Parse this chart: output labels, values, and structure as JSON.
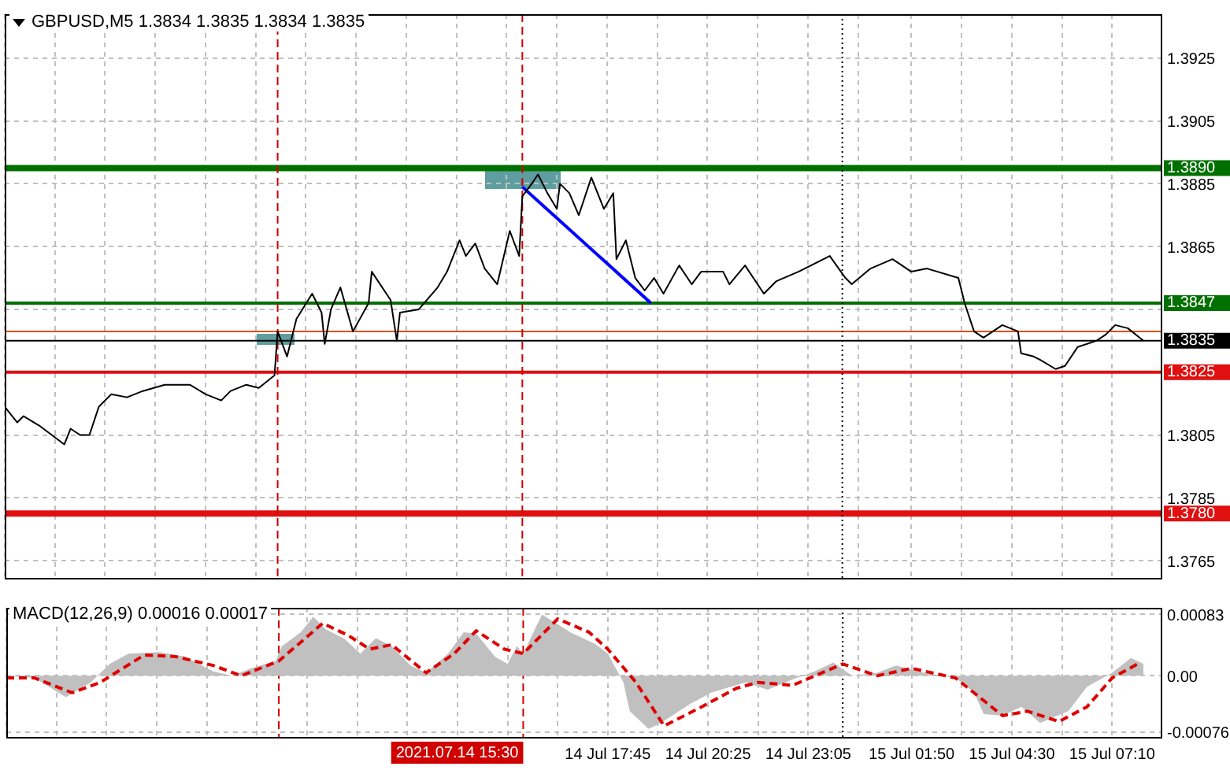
{
  "chart_data": [
    {
      "type": "line",
      "title": "GBPUSD,M5 1.3834 1.3835 1.3834 1.3835",
      "marker": "none",
      "grid": true,
      "tick_labels": "y",
      "xlim": [
        "2021-07-14T01:45",
        "2021-07-15T08:30"
      ],
      "xticks": [
        {
          "value": "2021-07-14T01:45",
          "label": null
        },
        {
          "value": "2021-07-14T03:05",
          "label": null
        },
        {
          "value": "2021-07-14T04:25",
          "label": null
        },
        {
          "value": "2021-07-14T05:45",
          "label": null
        },
        {
          "value": "2021-07-14T07:05",
          "label": null
        },
        {
          "value": "2021-07-14T08:25",
          "label": null
        },
        {
          "value": "2021-07-14T09:45",
          "label": null
        },
        {
          "value": "2021-07-14T11:05",
          "label": null
        },
        {
          "value": "2021-07-14T12:25",
          "label": null
        },
        {
          "value": "2021-07-14T13:45",
          "label": null
        },
        {
          "value": "2021-07-14T15:05",
          "label": null
        },
        {
          "value": "2021-07-14T16:25",
          "label": null
        },
        {
          "value": "2021-07-14T17:45",
          "label": null
        },
        {
          "value": "2021-07-14T19:05",
          "label": null
        },
        {
          "value": "2021-07-14T20:25",
          "label": null
        },
        {
          "value": "2021-07-14T21:45",
          "label": null
        },
        {
          "value": "2021-07-14T23:05",
          "label": null
        },
        {
          "value": "2021-07-15T00:25",
          "label": null
        },
        {
          "value": "2021-07-15T01:50",
          "label": null
        },
        {
          "value": "2021-07-15T03:10",
          "label": null
        },
        {
          "value": "2021-07-15T04:30",
          "label": null
        },
        {
          "value": "2021-07-15T05:50",
          "label": null
        },
        {
          "value": "2021-07-15T07:10",
          "label": null
        }
      ],
      "ylim": [
        1.3759,
        1.3939
      ],
      "yticks": [
        1.3765,
        1.3785,
        1.3805,
        {
          "value": 1.3845,
          "label": null
        },
        1.3865,
        1.3885,
        1.3905,
        1.3925
      ],
      "ref_lines": [
        {
          "axis": "y",
          "value": 1.389,
          "label": "1.3890",
          "color": "#007000"
        },
        {
          "axis": "y",
          "value": 1.3847,
          "label": "1.3847",
          "color": "#007000"
        },
        {
          "axis": "y",
          "value": 1.3838,
          "label": null,
          "color": "#e05000"
        },
        {
          "axis": "y",
          "value": 1.3835,
          "label": "1.3835",
          "color": "#000000"
        },
        {
          "axis": "y",
          "value": 1.3825,
          "label": "1.3825",
          "color": "#e01010"
        },
        {
          "axis": "y",
          "value": 1.378,
          "label": "1.3780",
          "color": "#e01010"
        },
        {
          "axis": "x",
          "value": "2021-07-14T09:00",
          "label": null,
          "color": "#d00000",
          "line_style": "dashed"
        },
        {
          "axis": "x",
          "value": "2021-07-14T15:30",
          "label": null,
          "color": "#d00000",
          "line_style": "dashed"
        },
        {
          "axis": "x",
          "value": "2021-07-15T00:00",
          "label": null,
          "color": "#000000",
          "line_style": "dotted"
        }
      ],
      "series": [
        {
          "color": "#000000",
          "x": [
            "2021-07-14T01:45",
            "2021-07-14T02:05",
            "2021-07-14T02:15",
            "2021-07-14T02:40",
            "2021-07-14T03:00",
            "2021-07-14T03:20",
            "2021-07-14T03:30",
            "2021-07-14T03:45",
            "2021-07-14T04:00",
            "2021-07-14T04:15",
            "2021-07-14T04:35",
            "2021-07-14T05:00",
            "2021-07-14T05:25",
            "2021-07-14T06:00",
            "2021-07-14T06:25",
            "2021-07-14T06:40",
            "2021-07-14T07:05",
            "2021-07-14T07:30",
            "2021-07-14T07:45",
            "2021-07-14T08:10",
            "2021-07-14T08:30",
            "2021-07-14T08:55",
            "2021-07-14T09:00",
            "2021-07-14T09:15",
            "2021-07-14T09:30",
            "2021-07-14T09:55",
            "2021-07-14T10:10",
            "2021-07-14T10:15",
            "2021-07-14T10:25",
            "2021-07-14T10:40",
            "2021-07-14T11:00",
            "2021-07-14T11:25",
            "2021-07-14T11:30",
            "2021-07-14T12:00",
            "2021-07-14T12:10",
            "2021-07-14T12:15",
            "2021-07-14T12:45",
            "2021-07-14T13:15",
            "2021-07-14T13:30",
            "2021-07-14T13:50",
            "2021-07-14T14:00",
            "2021-07-14T14:15",
            "2021-07-14T14:30",
            "2021-07-14T14:50",
            "2021-07-14T15:10",
            "2021-07-14T15:25",
            "2021-07-14T15:30",
            "2021-07-14T15:45",
            "2021-07-14T15:55",
            "2021-07-14T16:10",
            "2021-07-14T16:25",
            "2021-07-14T16:30",
            "2021-07-14T16:45",
            "2021-07-14T17:00",
            "2021-07-14T17:20",
            "2021-07-14T17:40",
            "2021-07-14T17:55",
            "2021-07-14T18:00",
            "2021-07-14T18:15",
            "2021-07-14T18:30",
            "2021-07-14T18:45",
            "2021-07-14T19:00",
            "2021-07-14T19:15",
            "2021-07-14T19:40",
            "2021-07-14T20:00",
            "2021-07-14T20:15",
            "2021-07-14T20:50",
            "2021-07-14T21:00",
            "2021-07-14T21:25",
            "2021-07-14T21:55",
            "2021-07-14T22:15",
            "2021-07-14T22:50",
            "2021-07-14T23:40",
            "2021-07-15T00:05",
            "2021-07-15T00:15",
            "2021-07-15T00:45",
            "2021-07-15T01:20",
            "2021-07-15T01:50",
            "2021-07-15T02:15",
            "2021-07-15T03:05",
            "2021-07-15T03:15",
            "2021-07-15T03:30",
            "2021-07-15T03:45",
            "2021-07-15T04:15",
            "2021-07-15T04:40",
            "2021-07-15T04:45",
            "2021-07-15T05:05",
            "2021-07-15T05:15",
            "2021-07-15T05:40",
            "2021-07-15T05:55",
            "2021-07-15T06:15",
            "2021-07-15T06:45",
            "2021-07-15T07:00",
            "2021-07-15T07:15",
            "2021-07-15T07:35",
            "2021-07-15T08:00"
          ],
          "values": [
            1.3814,
            1.3809,
            1.3811,
            1.3808,
            1.3805,
            1.3802,
            1.3807,
            1.3805,
            1.3805,
            1.3814,
            1.3818,
            1.3817,
            1.3819,
            1.3821,
            1.3821,
            1.3821,
            1.3818,
            1.3816,
            1.3819,
            1.3821,
            1.382,
            1.3824,
            1.3838,
            1.383,
            1.3842,
            1.385,
            1.3844,
            1.3834,
            1.3845,
            1.3852,
            1.3838,
            1.3847,
            1.3857,
            1.3848,
            1.3835,
            1.3844,
            1.3845,
            1.3852,
            1.3857,
            1.3867,
            1.3862,
            1.3866,
            1.3858,
            1.3853,
            1.387,
            1.3862,
            1.3881,
            1.3885,
            1.3888,
            1.3882,
            1.3877,
            1.3885,
            1.3882,
            1.3875,
            1.3887,
            1.3877,
            1.3882,
            1.3861,
            1.3867,
            1.3855,
            1.3851,
            1.3855,
            1.385,
            1.3859,
            1.3853,
            1.3857,
            1.3857,
            1.3853,
            1.3859,
            1.385,
            1.3854,
            1.3857,
            1.3862,
            1.3855,
            1.3853,
            1.3858,
            1.3861,
            1.3857,
            1.3858,
            1.3855,
            1.3847,
            1.3838,
            1.3836,
            1.384,
            1.3838,
            1.3831,
            1.383,
            1.3829,
            1.3826,
            1.3827,
            1.3833,
            1.3835,
            1.3837,
            1.384,
            1.3839,
            1.3835
          ]
        },
        {
          "color": "#0000ff",
          "x": [
            "2021-07-14T15:30",
            "2021-07-14T18:55"
          ],
          "values": [
            1.3884,
            1.3847
          ]
        }
      ]
    },
    {
      "type": "line",
      "title": "MACD(12,26,9) 0.00016 0.00017",
      "marker": "none",
      "grid": true,
      "xlim": [
        "2021-07-14T01:45",
        "2021-07-15T08:30"
      ],
      "xticks": [
        {
          "value": "2021-07-14T01:45",
          "label": null
        },
        {
          "value": "2021-07-14T03:05",
          "label": null
        },
        {
          "value": "2021-07-14T04:25",
          "label": null
        },
        {
          "value": "2021-07-14T05:45",
          "label": null
        },
        {
          "value": "2021-07-14T07:05",
          "label": null
        },
        {
          "value": "2021-07-14T08:25",
          "label": null
        },
        {
          "value": "2021-07-14T09:45",
          "label": null
        },
        {
          "value": "2021-07-14T11:05",
          "label": null
        },
        {
          "value": "2021-07-14T12:25",
          "label": null
        },
        {
          "value": "2021-07-14T13:45",
          "label": null
        },
        {
          "value": "2021-07-14T15:05",
          "label": null
        },
        {
          "value": "2021-07-14T16:25",
          "label": null
        },
        {
          "value": "2021-07-14T17:45",
          "label": "14 Jul 17:45"
        },
        {
          "value": "2021-07-14T19:05",
          "label": null
        },
        {
          "value": "2021-07-14T20:25",
          "label": "14 Jul 20:25"
        },
        {
          "value": "2021-07-14T21:45",
          "label": null
        },
        {
          "value": "2021-07-14T23:05",
          "label": "14 Jul 23:05"
        },
        {
          "value": "2021-07-15T00:25",
          "label": null
        },
        {
          "value": "2021-07-15T01:50",
          "label": "15 Jul 01:50"
        },
        {
          "value": "2021-07-15T03:10",
          "label": null
        },
        {
          "value": "2021-07-15T04:30",
          "label": "15 Jul 04:30"
        },
        {
          "value": "2021-07-15T05:50",
          "label": null
        },
        {
          "value": "2021-07-15T07:10",
          "label": "15 Jul 07:10"
        }
      ],
      "ylim": [
        -0.00085,
        0.00092
      ],
      "yticks": [
        -0.00076,
        {
          "value": 0,
          "label": "0.00"
        },
        0.00083
      ],
      "ref_lines": [
        {
          "axis": "x",
          "value": "2021-07-14T09:00",
          "label": null,
          "color": "#d00000",
          "line_style": "dashed"
        },
        {
          "axis": "x",
          "value": "2021-07-14T15:30",
          "label": "2021.07.14 15:30",
          "color": "#d00000",
          "line_style": "dashed"
        },
        {
          "axis": "x",
          "value": "2021-07-15T00:00",
          "label": null,
          "color": "#000000",
          "line_style": "dotted"
        }
      ],
      "series": [
        {
          "type": "area",
          "color": "#c0c0c0",
          "x": [
            "2021-07-14T01:45",
            "2021-07-14T02:30",
            "2021-07-14T03:20",
            "2021-07-14T04:00",
            "2021-07-14T04:30",
            "2021-07-14T05:00",
            "2021-07-14T05:50",
            "2021-07-14T06:30",
            "2021-07-14T07:15",
            "2021-07-14T07:45",
            "2021-07-14T08:15",
            "2021-07-14T08:55",
            "2021-07-14T09:05",
            "2021-07-14T09:35",
            "2021-07-14T09:55",
            "2021-07-14T10:15",
            "2021-07-14T10:45",
            "2021-07-14T11:10",
            "2021-07-14T11:35",
            "2021-07-14T12:00",
            "2021-07-14T12:30",
            "2021-07-14T12:55",
            "2021-07-14T13:30",
            "2021-07-14T13:55",
            "2021-07-14T14:15",
            "2021-07-14T14:45",
            "2021-07-14T15:05",
            "2021-07-14T15:20",
            "2021-07-14T15:30",
            "2021-07-14T16:00",
            "2021-07-14T16:25",
            "2021-07-14T16:45",
            "2021-07-14T17:25",
            "2021-07-14T17:45",
            "2021-07-14T18:10",
            "2021-07-14T18:20",
            "2021-07-14T18:50",
            "2021-07-14T19:10",
            "2021-07-14T19:55",
            "2021-07-14T20:30",
            "2021-07-14T21:25",
            "2021-07-14T22:00",
            "2021-07-14T22:40",
            "2021-07-14T23:15",
            "2021-07-14T23:45",
            "2021-07-15T00:15",
            "2021-07-15T00:55",
            "2021-07-15T01:25",
            "2021-07-15T02:10",
            "2021-07-15T03:00",
            "2021-07-15T03:30",
            "2021-07-15T03:45",
            "2021-07-15T04:15",
            "2021-07-15T04:45",
            "2021-07-15T05:15",
            "2021-07-15T06:00",
            "2021-07-15T06:30",
            "2021-07-15T07:10",
            "2021-07-15T07:40",
            "2021-07-15T08:00"
          ],
          "values": [
            0,
            -3e-05,
            -0.00029,
            -9e-05,
            0.00016,
            0.0003,
            0.00032,
            0.00026,
            6e-05,
            0,
            0.0001,
            0.0002,
            0.0004,
            0.00059,
            0.0008,
            0.00063,
            0.0005,
            0.0003,
            0.00051,
            0.0004,
            0.00014,
            4e-05,
            0.0003,
            0.00059,
            0.00057,
            0.00026,
            0.00016,
            0.0004,
            0.0003,
            0.00083,
            0.0007,
            0.00059,
            0.00043,
            0.0003,
            -9e-05,
            -0.00048,
            -0.00072,
            -0.00064,
            -0.00039,
            -0.00023,
            -9e-05,
            -0.00019,
            -5e-05,
            6e-05,
            0.00018,
            0,
            4e-05,
            0.00014,
            4e-05,
            -3e-05,
            -0.00023,
            -0.00052,
            -0.00054,
            -0.00042,
            -0.00064,
            -0.00048,
            -0.00015,
            4e-05,
            0.00024,
            0.00016
          ]
        },
        {
          "color": "#e00000",
          "line_style": "dashed",
          "x": [
            "2021-07-14T01:45",
            "2021-07-14T02:30",
            "2021-07-14T03:30",
            "2021-07-14T04:15",
            "2021-07-14T05:25",
            "2021-07-14T06:15",
            "2021-07-14T07:15",
            "2021-07-14T08:00",
            "2021-07-14T09:00",
            "2021-07-14T10:10",
            "2021-07-14T10:50",
            "2021-07-14T11:25",
            "2021-07-14T12:00",
            "2021-07-14T12:55",
            "2021-07-14T13:40",
            "2021-07-14T14:15",
            "2021-07-14T15:00",
            "2021-07-14T15:30",
            "2021-07-14T16:25",
            "2021-07-14T17:15",
            "2021-07-14T17:45",
            "2021-07-14T18:30",
            "2021-07-14T19:15",
            "2021-07-14T20:15",
            "2021-07-14T21:10",
            "2021-07-14T21:45",
            "2021-07-14T22:40",
            "2021-07-15T00:00",
            "2021-07-15T00:55",
            "2021-07-15T01:50",
            "2021-07-15T03:00",
            "2021-07-15T04:15",
            "2021-07-15T04:55",
            "2021-07-15T05:45",
            "2021-07-15T06:30",
            "2021-07-15T07:10",
            "2021-07-15T07:55"
          ],
          "values": [
            -3e-05,
            -3e-05,
            -0.00023,
            -9e-05,
            0.00028,
            0.00026,
            0.00014,
            0,
            0.0002,
            0.00071,
            0.00055,
            0.00036,
            0.00042,
            4e-05,
            0.0003,
            0.00061,
            0.00036,
            0.0003,
            0.00077,
            0.00059,
            0.00036,
            -9e-05,
            -0.00068,
            -0.00042,
            -0.00017,
            -9e-05,
            -0.00013,
            0.00016,
            0,
            0.0001,
            -3e-05,
            -0.00054,
            -0.00048,
            -0.00062,
            -0.00042,
            -3e-05,
            0.00018
          ]
        }
      ]
    }
  ]
}
